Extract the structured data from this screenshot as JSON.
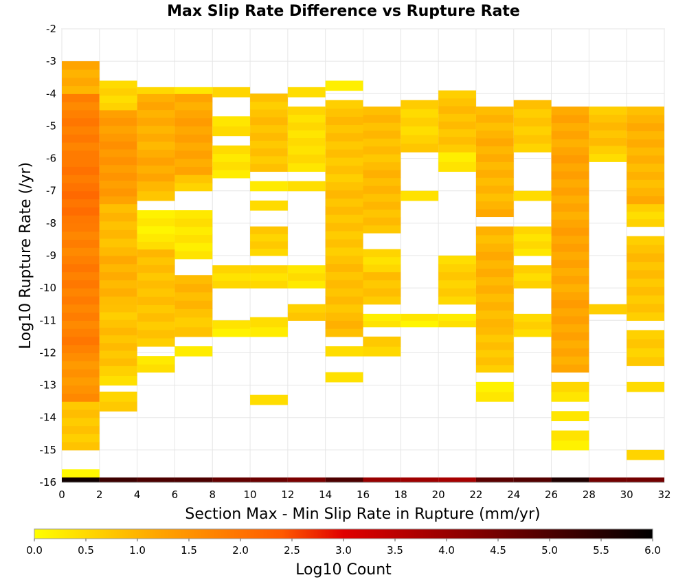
{
  "chart_data": {
    "type": "heatmap",
    "title": "Max Slip Rate Difference vs Rupture Rate",
    "xlabel": "Section Max - Min Slip Rate in Rupture (mm/yr)",
    "ylabel": "Log10 Rupture Rate (/yr)",
    "xlim": [
      0,
      32
    ],
    "ylim": [
      -16,
      -2
    ],
    "x_bin_width": 2,
    "y_bin_width": 0.25,
    "x_ticks": [
      "0",
      "2",
      "4",
      "6",
      "8",
      "10",
      "12",
      "14",
      "16",
      "18",
      "20",
      "22",
      "24",
      "26",
      "28",
      "30",
      "32"
    ],
    "y_ticks": [
      "-2",
      "-3",
      "-4",
      "-5",
      "-6",
      "-7",
      "-8",
      "-9",
      "-10",
      "-11",
      "-12",
      "-13",
      "-14",
      "-15",
      "-16"
    ],
    "grid": true,
    "colorbar": {
      "label": "Log10 Count",
      "range": [
        0.0,
        6.0
      ],
      "ticks": [
        "0.0",
        "0.5",
        "1.0",
        "1.5",
        "2.0",
        "2.5",
        "3.0",
        "3.5",
        "4.0",
        "4.5",
        "5.0",
        "5.5",
        "6.0"
      ],
      "colors": [
        "#ffff00",
        "#ffa500",
        "#ff5a00",
        "#e00000",
        "#8a0000",
        "#000000"
      ]
    },
    "columns": [
      {
        "x0": 0,
        "cells": [
          [
            -15.9,
            -15.6,
            0.25
          ],
          [
            -15.0,
            -13.5,
            0.8
          ],
          [
            -13.5,
            -12.0,
            1.5
          ],
          [
            -12.0,
            -10.0,
            1.8
          ],
          [
            -10.0,
            -8.0,
            1.8
          ],
          [
            -8.0,
            -6.0,
            2.0
          ],
          [
            -6.0,
            -4.0,
            1.8
          ],
          [
            -4.0,
            -3.0,
            1.1
          ]
        ]
      },
      {
        "x0": 2,
        "cells": [
          [
            -13.8,
            -13.2,
            0.6
          ],
          [
            -13.0,
            -12.4,
            0.5
          ],
          [
            -12.4,
            -10.5,
            0.8
          ],
          [
            -10.5,
            -9.0,
            1.0
          ],
          [
            -9.0,
            -7.4,
            0.9
          ],
          [
            -7.4,
            -4.5,
            1.4
          ],
          [
            -4.5,
            -3.6,
            0.6
          ]
        ]
      },
      {
        "x0": 4,
        "cells": [
          [
            -12.6,
            -12.1,
            0.4
          ],
          [
            -11.8,
            -10.0,
            0.8
          ],
          [
            -10.0,
            -8.8,
            0.9
          ],
          [
            -8.8,
            -7.6,
            0.3
          ],
          [
            -7.3,
            -6.7,
            0.8
          ],
          [
            -6.7,
            -4.0,
            1.1
          ],
          [
            -4.0,
            -3.8,
            0.6
          ]
        ]
      },
      {
        "x0": 6,
        "cells": [
          [
            -12.1,
            -11.8,
            0.3
          ],
          [
            -11.5,
            -10.9,
            0.7
          ],
          [
            -10.9,
            -9.6,
            0.9
          ],
          [
            -9.1,
            -7.6,
            0.3
          ],
          [
            -7.0,
            -6.5,
            0.7
          ],
          [
            -6.5,
            -4.0,
            1.2
          ],
          [
            -4.0,
            -3.8,
            0.5
          ]
        ]
      },
      {
        "x0": 8,
        "cells": [
          [
            -11.5,
            -11.0,
            0.3
          ],
          [
            -10.0,
            -9.3,
            0.5
          ],
          [
            -6.6,
            -5.6,
            0.4
          ],
          [
            -5.3,
            -4.7,
            0.5
          ],
          [
            -4.1,
            -3.8,
            0.4
          ]
        ]
      },
      {
        "x0": 10,
        "cells": [
          [
            -13.6,
            -13.3,
            0.3
          ],
          [
            -11.5,
            -10.9,
            0.3
          ],
          [
            -10.0,
            -9.3,
            0.4
          ],
          [
            -9.0,
            -8.1,
            0.6
          ],
          [
            -7.6,
            -7.3,
            0.4
          ],
          [
            -7.0,
            -6.7,
            0.4
          ],
          [
            -6.4,
            -4.0,
            0.8
          ]
        ]
      },
      {
        "x0": 12,
        "cells": [
          [
            -11.0,
            -10.5,
            0.7
          ],
          [
            -10.0,
            -9.3,
            0.4
          ],
          [
            -7.0,
            -6.7,
            0.4
          ],
          [
            -6.4,
            -5.6,
            0.5
          ],
          [
            -5.6,
            -4.4,
            0.5
          ],
          [
            -4.1,
            -3.8,
            0.3
          ]
        ]
      },
      {
        "x0": 14,
        "cells": [
          [
            -12.9,
            -12.6,
            0.4
          ],
          [
            -12.1,
            -11.8,
            0.3
          ],
          [
            -11.5,
            -10.0,
            0.9
          ],
          [
            -10.0,
            -4.2,
            0.8
          ],
          [
            -3.9,
            -3.6,
            0.3
          ]
        ]
      },
      {
        "x0": 16,
        "cells": [
          [
            -12.1,
            -11.5,
            0.6
          ],
          [
            -11.2,
            -10.8,
            0.3
          ],
          [
            -10.5,
            -9.5,
            0.8
          ],
          [
            -9.5,
            -8.8,
            0.5
          ],
          [
            -8.3,
            -4.4,
            0.9
          ]
        ]
      },
      {
        "x0": 18,
        "cells": [
          [
            -11.2,
            -10.8,
            0.3
          ],
          [
            -7.3,
            -7.0,
            0.4
          ],
          [
            -5.8,
            -4.2,
            0.6
          ]
        ]
      },
      {
        "x0": 20,
        "cells": [
          [
            -11.2,
            -10.8,
            0.3
          ],
          [
            -10.5,
            -9.0,
            0.6
          ],
          [
            -6.4,
            -5.8,
            0.3
          ],
          [
            -5.8,
            -3.9,
            0.8
          ]
        ]
      },
      {
        "x0": 22,
        "cells": [
          [
            -13.5,
            -12.9,
            0.3
          ],
          [
            -12.6,
            -11.2,
            0.8
          ],
          [
            -11.2,
            -8.1,
            1.0
          ],
          [
            -7.8,
            -4.4,
            1.0
          ]
        ]
      },
      {
        "x0": 24,
        "cells": [
          [
            -11.5,
            -10.8,
            0.5
          ],
          [
            -10.0,
            -9.3,
            0.5
          ],
          [
            -9.0,
            -8.1,
            0.4
          ],
          [
            -7.3,
            -7.0,
            0.4
          ],
          [
            -5.8,
            -4.2,
            0.7
          ]
        ]
      },
      {
        "x0": 26,
        "cells": [
          [
            -15.0,
            -14.4,
            0.3
          ],
          [
            -14.1,
            -13.8,
            0.3
          ],
          [
            -13.5,
            -12.9,
            0.5
          ],
          [
            -12.6,
            -4.4,
            1.2
          ]
        ]
      },
      {
        "x0": 28,
        "cells": [
          [
            -10.8,
            -10.5,
            0.5
          ],
          [
            -6.1,
            -5.6,
            0.5
          ],
          [
            -5.6,
            -4.4,
            0.8
          ]
        ]
      },
      {
        "x0": 30,
        "cells": [
          [
            -15.3,
            -15.0,
            0.5
          ],
          [
            -13.2,
            -12.9,
            0.6
          ],
          [
            -12.4,
            -11.3,
            0.7
          ],
          [
            -11.0,
            -8.4,
            0.8
          ],
          [
            -8.1,
            -7.4,
            0.6
          ],
          [
            -7.4,
            -4.4,
            1.0
          ]
        ]
      }
    ],
    "bottom_row": {
      "y0": -16.0,
      "y1": -15.85,
      "values": [
        5.8,
        5.2,
        5.0,
        5.0,
        4.7,
        4.6,
        4.4,
        5.0,
        4.0,
        3.9,
        3.8,
        4.8,
        4.9,
        5.6,
        4.5,
        4.5
      ]
    }
  }
}
